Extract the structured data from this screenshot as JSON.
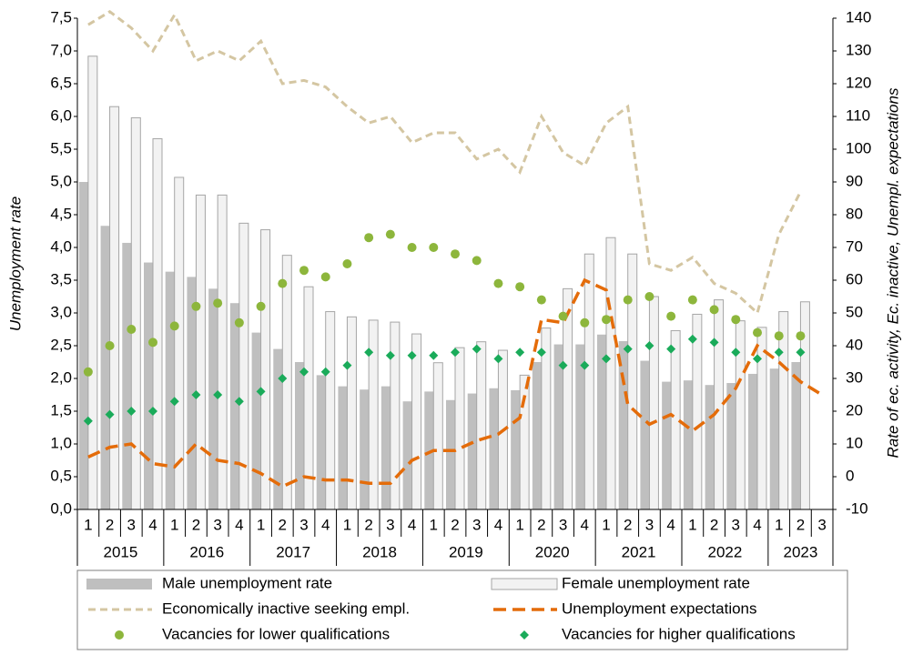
{
  "chart_data": {
    "type": "combo",
    "y_label": "Unemployment rate",
    "y2_label": "Rate of ec. activity, Ec. inactive, Unempl. expectations",
    "categories": [
      "1",
      "2",
      "3",
      "4",
      "1",
      "2",
      "3",
      "4",
      "1",
      "2",
      "3",
      "4",
      "1",
      "2",
      "3",
      "4",
      "1",
      "2",
      "3",
      "4",
      "1",
      "2",
      "3",
      "4",
      "1",
      "2",
      "3",
      "4",
      "1",
      "2",
      "3",
      "4",
      "1",
      "2",
      "3"
    ],
    "years": [
      "2015",
      "2016",
      "2017",
      "2018",
      "2019",
      "2020",
      "2021",
      "2022",
      "2023"
    ],
    "ylim": [
      0,
      7.5
    ],
    "yticks": [
      {
        "value": 0,
        "label": "0,0"
      },
      {
        "value": 0.5,
        "label": "0,5"
      },
      {
        "value": 1,
        "label": "1,0"
      },
      {
        "value": 1.5,
        "label": "1,5"
      },
      {
        "value": 2,
        "label": "2,0"
      },
      {
        "value": 2.5,
        "label": "2,5"
      },
      {
        "value": 3,
        "label": "3,0"
      },
      {
        "value": 3.5,
        "label": "3,5"
      },
      {
        "value": 4,
        "label": "4,0"
      },
      {
        "value": 4.5,
        "label": "4,5"
      },
      {
        "value": 5,
        "label": "5,0"
      },
      {
        "value": 5.5,
        "label": "5,5"
      },
      {
        "value": 6,
        "label": "6,0"
      },
      {
        "value": 6.5,
        "label": "6,5"
      },
      {
        "value": 7,
        "label": "7,0"
      },
      {
        "value": 7.5,
        "label": "7,5"
      }
    ],
    "y2lim": [
      -10,
      140
    ],
    "y2ticks": [
      -10,
      0,
      10,
      20,
      30,
      40,
      50,
      60,
      70,
      80,
      90,
      100,
      110,
      120,
      130,
      140
    ],
    "series": [
      {
        "name": "Male unemployment rate",
        "kind": "bar",
        "color": "#bfbfbf",
        "values": [
          5.0,
          4.33,
          4.07,
          3.77,
          3.63,
          3.55,
          3.37,
          3.15,
          2.7,
          2.45,
          2.25,
          2.05,
          1.88,
          1.83,
          1.88,
          1.65,
          1.8,
          1.67,
          1.77,
          1.85,
          1.82,
          2.25,
          2.52,
          2.52,
          2.67,
          2.57,
          2.27,
          1.95,
          1.97,
          1.9,
          1.93,
          2.07,
          2.15,
          2.25,
          null
        ]
      },
      {
        "name": "Female unemployment rate",
        "kind": "bar",
        "color": "#f2f2f2",
        "values": [
          6.92,
          6.15,
          5.98,
          5.66,
          5.07,
          4.8,
          4.8,
          4.37,
          4.27,
          3.88,
          3.4,
          3.02,
          2.94,
          2.89,
          2.86,
          2.68,
          2.24,
          2.47,
          2.56,
          2.43,
          2.05,
          2.77,
          3.37,
          3.9,
          4.15,
          3.9,
          3.25,
          2.73,
          2.98,
          3.2,
          2.88,
          2.78,
          3.02,
          3.17,
          null
        ]
      },
      {
        "name": "Economically inactive seeking empl.",
        "kind": "line",
        "axis": "y2",
        "color": "#d4c6a2",
        "dash": "short",
        "values": [
          138,
          142,
          137,
          130,
          141,
          127,
          130,
          127,
          133,
          120,
          121,
          119,
          113,
          108,
          110,
          102,
          105,
          105,
          97,
          100,
          93,
          110,
          99,
          95,
          108,
          113,
          65,
          63,
          67,
          59,
          56,
          50,
          74,
          87,
          null
        ]
      },
      {
        "name": "Unemployment expectations",
        "kind": "line",
        "axis": "y2",
        "color": "#e46c0a",
        "dash": "long",
        "values": [
          6,
          9,
          10,
          4,
          3,
          10,
          5,
          4,
          1,
          -3,
          0,
          -1,
          -1,
          -2,
          -2,
          5,
          8,
          8,
          11,
          13,
          18,
          48,
          47,
          60,
          57,
          22,
          16,
          19,
          14,
          19,
          27,
          40,
          35,
          29,
          25
        ]
      },
      {
        "name": "Vacancies for lower qualifications",
        "kind": "scatter",
        "marker": "circle",
        "axis": "y2",
        "color": "#8db63c",
        "values": [
          32,
          40,
          45,
          41,
          46,
          52,
          53,
          47,
          52,
          59,
          63,
          61,
          65,
          73,
          74,
          70,
          70,
          68,
          66,
          59,
          58,
          54,
          49,
          47,
          48,
          54,
          55,
          49,
          54,
          51,
          48,
          44,
          43,
          43,
          null
        ]
      },
      {
        "name": "Vacancies for higher qualifications",
        "kind": "scatter",
        "marker": "diamond",
        "axis": "y2",
        "color": "#1aab5a",
        "values": [
          17,
          19,
          20,
          20,
          23,
          25,
          25,
          23,
          26,
          30,
          32,
          32,
          34,
          38,
          37,
          37,
          37,
          38,
          39,
          36,
          38,
          38,
          34,
          34,
          36,
          39,
          40,
          39,
          42,
          41,
          38,
          36,
          38,
          38,
          null
        ]
      }
    ]
  }
}
